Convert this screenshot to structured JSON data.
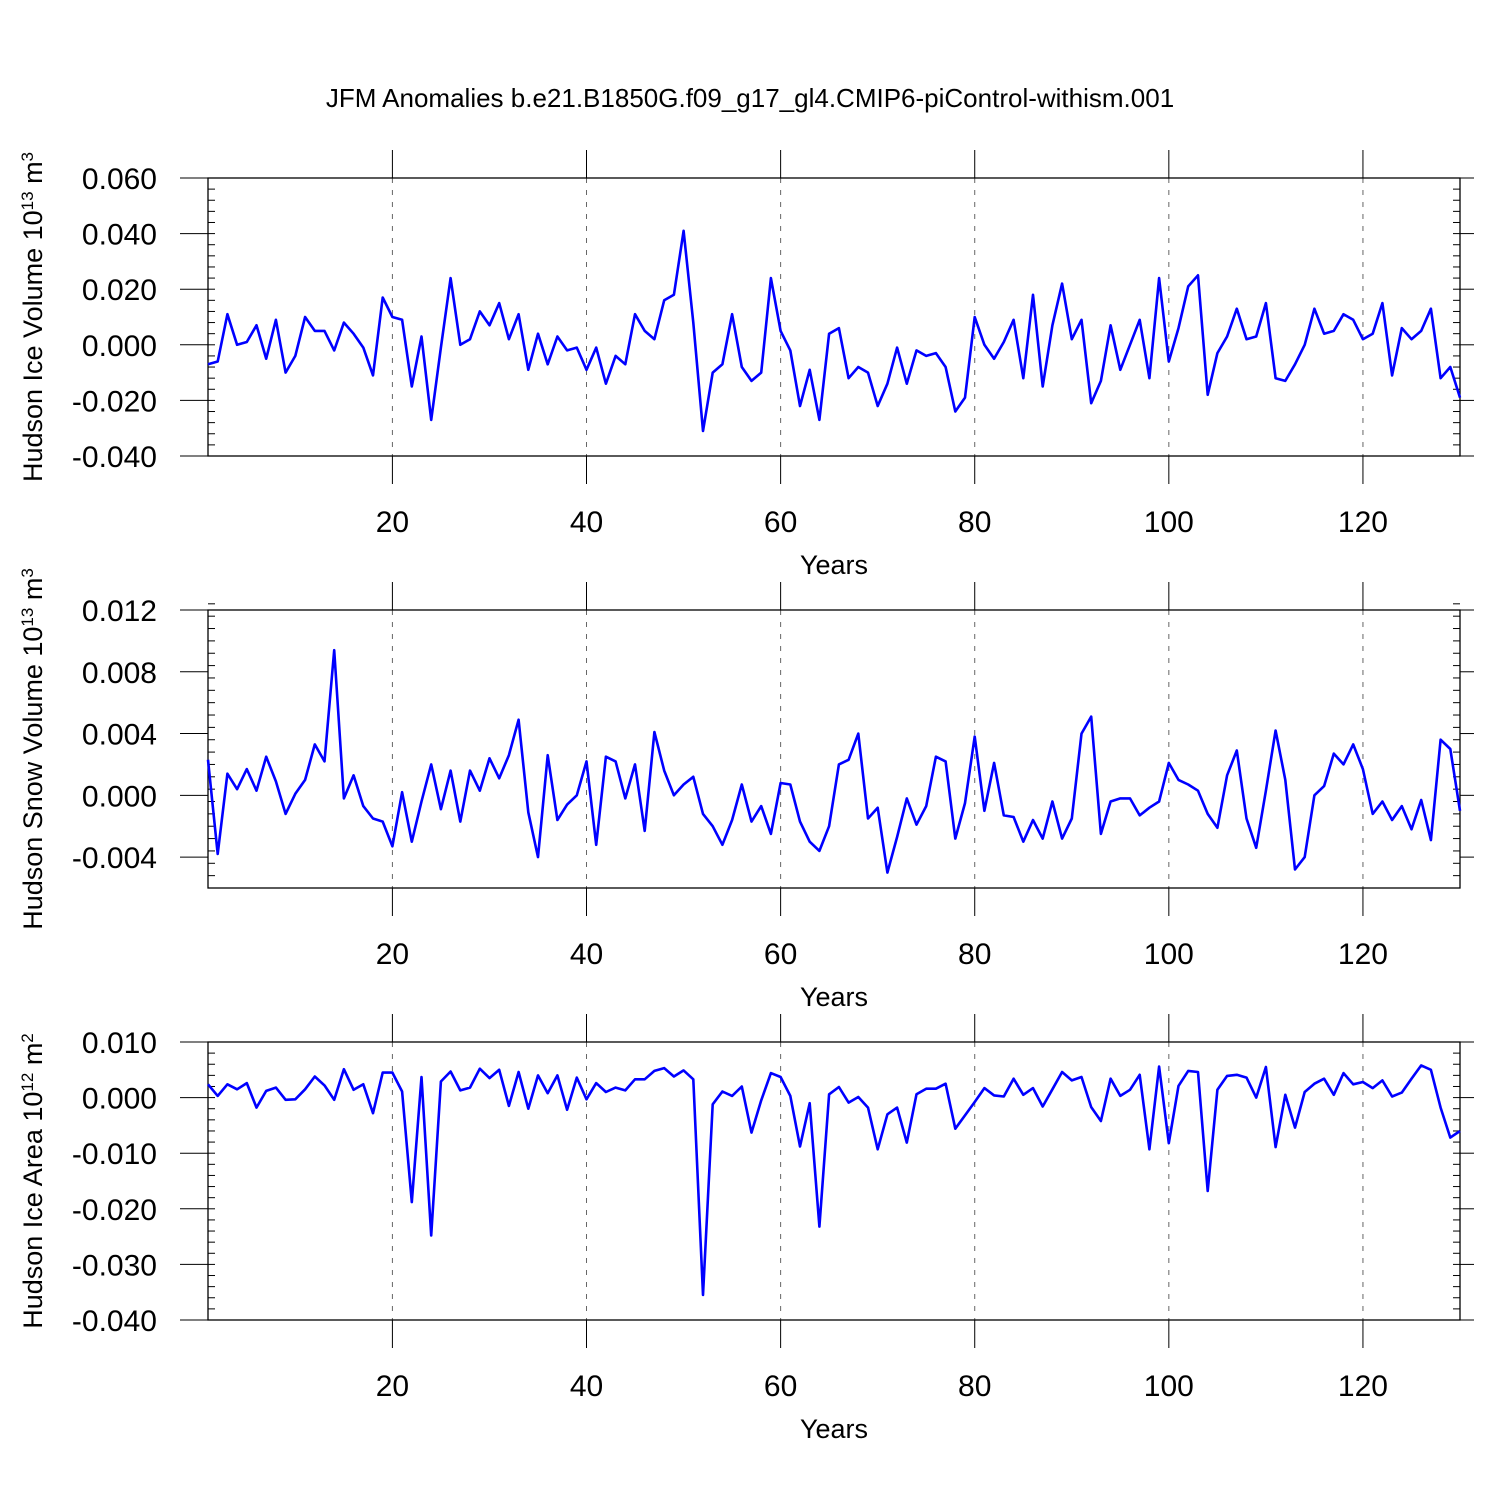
{
  "title": "JFM Anomalies b.e21.B1850G.f09_g17_gl4.CMIP6-piControl-withism.001",
  "chart_data": [
    {
      "type": "line",
      "title": "JFM Anomalies b.e21.B1850G.f09_g17_gl4.CMIP6-piControl-withism.001",
      "xlabel": "Years",
      "ylabel": {
        "main": "Hudson Ice Volume 10",
        "exp": "13",
        "unit": " m",
        "unit_exp": "3"
      },
      "xlim": [
        1,
        130
      ],
      "ylim": [
        -0.04,
        0.06
      ],
      "xticks": [
        20,
        40,
        60,
        80,
        100,
        120
      ],
      "xtick_labels": [
        "20",
        "40",
        "60",
        "80",
        "100",
        "120"
      ],
      "yticks": [
        -0.04,
        -0.02,
        0.0,
        0.02,
        0.04,
        0.06
      ],
      "ytick_labels": [
        "-0.040",
        "-0.020",
        "0.000",
        "0.020",
        "0.040",
        "0.060"
      ],
      "minor_y_step": 0.004,
      "vertical_gridlines": "dashed, at x ticks",
      "line_color": "#0000ff",
      "x": [
        1,
        2,
        3,
        4,
        5,
        6,
        7,
        8,
        9,
        10,
        11,
        12,
        13,
        14,
        15,
        16,
        17,
        18,
        19,
        20,
        21,
        22,
        23,
        24,
        25,
        26,
        27,
        28,
        29,
        30,
        31,
        32,
        33,
        34,
        35,
        36,
        37,
        38,
        39,
        40,
        41,
        42,
        43,
        44,
        45,
        46,
        47,
        48,
        49,
        50,
        51,
        52,
        53,
        54,
        55,
        56,
        57,
        58,
        59,
        60,
        61,
        62,
        63,
        64,
        65,
        66,
        67,
        68,
        69,
        70,
        71,
        72,
        73,
        74,
        75,
        76,
        77,
        78,
        79,
        80,
        81,
        82,
        83,
        84,
        85,
        86,
        87,
        88,
        89,
        90,
        91,
        92,
        93,
        94,
        95,
        96,
        97,
        98,
        99,
        100,
        101,
        102,
        103,
        104,
        105,
        106,
        107,
        108,
        109,
        110,
        111,
        112,
        113,
        114,
        115,
        116,
        117,
        118,
        119,
        120,
        121,
        122,
        123,
        124,
        125,
        126,
        127,
        128,
        129,
        130
      ],
      "values": [
        -0.007,
        -0.006,
        0.011,
        0.0,
        0.001,
        0.007,
        -0.005,
        0.009,
        -0.01,
        -0.004,
        0.01,
        0.005,
        0.005,
        -0.002,
        0.008,
        0.004,
        -0.001,
        -0.011,
        0.017,
        0.01,
        0.009,
        -0.015,
        0.003,
        -0.027,
        -0.001,
        0.024,
        0.0,
        0.002,
        0.012,
        0.007,
        0.015,
        0.002,
        0.011,
        -0.009,
        0.004,
        -0.007,
        0.003,
        -0.002,
        -0.001,
        -0.009,
        -0.001,
        -0.014,
        -0.004,
        -0.007,
        0.011,
        0.005,
        0.002,
        0.016,
        0.018,
        0.041,
        0.008,
        -0.031,
        -0.01,
        -0.007,
        0.011,
        -0.008,
        -0.013,
        -0.01,
        0.024,
        0.005,
        -0.002,
        -0.022,
        -0.009,
        -0.027,
        0.004,
        0.006,
        -0.012,
        -0.008,
        -0.01,
        -0.022,
        -0.014,
        -0.001,
        -0.014,
        -0.002,
        -0.004,
        -0.003,
        -0.008,
        -0.024,
        -0.019,
        0.01,
        0.0,
        -0.005,
        0.001,
        0.009,
        -0.012,
        0.018,
        -0.015,
        0.007,
        0.022,
        0.002,
        0.009,
        -0.021,
        -0.013,
        0.007,
        -0.009,
        0.0,
        0.009,
        -0.012,
        0.024,
        -0.006,
        0.006,
        0.021,
        0.025,
        -0.018,
        -0.003,
        0.003,
        0.013,
        0.002,
        0.003,
        0.015,
        -0.012,
        -0.013,
        -0.007,
        0.0,
        0.013,
        0.004,
        0.005,
        0.011,
        0.009,
        0.002,
        0.004,
        0.015,
        -0.011,
        0.006,
        0.002,
        0.005,
        0.013,
        -0.012,
        -0.008,
        -0.019
      ]
    },
    {
      "type": "line",
      "xlabel": "Years",
      "ylabel": {
        "main": "Hudson Snow Volume 10",
        "exp": "13",
        "unit": " m",
        "unit_exp": "3"
      },
      "xlim": [
        1,
        130
      ],
      "ylim": [
        -0.006,
        0.012
      ],
      "xticks": [
        20,
        40,
        60,
        80,
        100,
        120
      ],
      "xtick_labels": [
        "20",
        "40",
        "60",
        "80",
        "100",
        "120"
      ],
      "yticks": [
        -0.004,
        0.0,
        0.004,
        0.008,
        0.012
      ],
      "ytick_labels": [
        "-0.004",
        "0.000",
        "0.004",
        "0.008",
        "0.012"
      ],
      "minor_y_step": 0.0008,
      "vertical_gridlines": "dashed, at x ticks",
      "line_color": "#0000ff",
      "x": [
        1,
        2,
        3,
        4,
        5,
        6,
        7,
        8,
        9,
        10,
        11,
        12,
        13,
        14,
        15,
        16,
        17,
        18,
        19,
        20,
        21,
        22,
        23,
        24,
        25,
        26,
        27,
        28,
        29,
        30,
        31,
        32,
        33,
        34,
        35,
        36,
        37,
        38,
        39,
        40,
        41,
        42,
        43,
        44,
        45,
        46,
        47,
        48,
        49,
        50,
        51,
        52,
        53,
        54,
        55,
        56,
        57,
        58,
        59,
        60,
        61,
        62,
        63,
        64,
        65,
        66,
        67,
        68,
        69,
        70,
        71,
        72,
        73,
        74,
        75,
        76,
        77,
        78,
        79,
        80,
        81,
        82,
        83,
        84,
        85,
        86,
        87,
        88,
        89,
        90,
        91,
        92,
        93,
        94,
        95,
        96,
        97,
        98,
        99,
        100,
        101,
        102,
        103,
        104,
        105,
        106,
        107,
        108,
        109,
        110,
        111,
        112,
        113,
        114,
        115,
        116,
        117,
        118,
        119,
        120,
        121,
        122,
        123,
        124,
        125,
        126,
        127,
        128,
        129,
        130
      ],
      "values": [
        0.0023,
        -0.0038,
        0.0014,
        0.0004,
        0.0017,
        0.0003,
        0.0025,
        0.0009,
        -0.0012,
        0.0001,
        0.001,
        0.0033,
        0.0022,
        0.0094,
        -0.0002,
        0.0013,
        -0.0007,
        -0.0015,
        -0.0017,
        -0.0033,
        0.0002,
        -0.003,
        -0.0004,
        0.002,
        -0.0009,
        0.0016,
        -0.0017,
        0.0016,
        0.0003,
        0.0024,
        0.0011,
        0.0026,
        0.0049,
        -0.0011,
        -0.004,
        0.0026,
        -0.0016,
        -0.0006,
        0.0,
        0.0022,
        -0.0032,
        0.0025,
        0.0022,
        -0.0002,
        0.002,
        -0.0023,
        0.0041,
        0.0016,
        0.0,
        0.0007,
        0.0012,
        -0.0012,
        -0.002,
        -0.0032,
        -0.0016,
        0.0007,
        -0.0017,
        -0.0007,
        -0.0025,
        0.0008,
        0.0007,
        -0.0017,
        -0.003,
        -0.0036,
        -0.002,
        0.002,
        0.0023,
        0.004,
        -0.0015,
        -0.0008,
        -0.005,
        -0.0027,
        -0.0002,
        -0.0019,
        -0.0007,
        0.0025,
        0.0022,
        -0.0028,
        -0.0005,
        0.0038,
        -0.001,
        0.0021,
        -0.0013,
        -0.0014,
        -0.003,
        -0.0016,
        -0.0028,
        -0.0004,
        -0.0028,
        -0.0015,
        0.004,
        0.0051,
        -0.0025,
        -0.0004,
        -0.0002,
        -0.0002,
        -0.0013,
        -0.0008,
        -0.0004,
        0.0021,
        0.001,
        0.0007,
        0.0003,
        -0.0012,
        -0.0021,
        0.0013,
        0.0029,
        -0.0015,
        -0.0034,
        0.0003,
        0.0042,
        0.001,
        -0.0048,
        -0.004,
        0.0,
        0.0006,
        0.0027,
        0.002,
        0.0033,
        0.0017,
        -0.0012,
        -0.0004,
        -0.0016,
        -0.0007,
        -0.0022,
        -0.0003,
        -0.0029,
        0.0036,
        0.003,
        -0.001
      ]
    },
    {
      "type": "line",
      "xlabel": "Years",
      "ylabel": {
        "main": "Hudson Ice Area 10",
        "exp": "12",
        "unit": " m",
        "unit_exp": "2"
      },
      "xlim": [
        1,
        130
      ],
      "ylim": [
        -0.04,
        0.01
      ],
      "xticks": [
        20,
        40,
        60,
        80,
        100,
        120
      ],
      "xtick_labels": [
        "20",
        "40",
        "60",
        "80",
        "100",
        "120"
      ],
      "yticks": [
        -0.04,
        -0.03,
        -0.02,
        -0.01,
        0.0,
        0.01
      ],
      "ytick_labels": [
        "-0.040",
        "-0.030",
        "-0.020",
        "-0.010",
        "0.000",
        "0.010"
      ],
      "minor_y_step": 0.002,
      "vertical_gridlines": "dashed, at x ticks",
      "line_color": "#0000ff",
      "x": [
        1,
        2,
        3,
        4,
        5,
        6,
        7,
        8,
        9,
        10,
        11,
        12,
        13,
        14,
        15,
        16,
        17,
        18,
        19,
        20,
        21,
        22,
        23,
        24,
        25,
        26,
        27,
        28,
        29,
        30,
        31,
        32,
        33,
        34,
        35,
        36,
        37,
        38,
        39,
        40,
        41,
        42,
        43,
        44,
        45,
        46,
        47,
        48,
        49,
        50,
        51,
        52,
        53,
        54,
        55,
        56,
        57,
        58,
        59,
        60,
        61,
        62,
        63,
        64,
        65,
        66,
        67,
        68,
        69,
        70,
        71,
        72,
        73,
        74,
        75,
        76,
        77,
        78,
        79,
        80,
        81,
        82,
        83,
        84,
        85,
        86,
        87,
        88,
        89,
        90,
        91,
        92,
        93,
        94,
        95,
        96,
        97,
        98,
        99,
        100,
        101,
        102,
        103,
        104,
        105,
        106,
        107,
        108,
        109,
        110,
        111,
        112,
        113,
        114,
        115,
        116,
        117,
        118,
        119,
        120,
        121,
        122,
        123,
        124,
        125,
        126,
        127,
        128,
        129,
        130
      ],
      "values": [
        0.0024,
        0.0003,
        0.0024,
        0.0015,
        0.0026,
        -0.0018,
        0.0012,
        0.0018,
        -0.0004,
        -0.0003,
        0.0015,
        0.0038,
        0.0022,
        -0.0004,
        0.0051,
        0.0014,
        0.0024,
        -0.0028,
        0.0045,
        0.0045,
        0.0011,
        -0.0188,
        0.0037,
        -0.0248,
        0.0029,
        0.0047,
        0.0013,
        0.0018,
        0.0052,
        0.0035,
        0.005,
        -0.0015,
        0.0046,
        -0.002,
        0.004,
        0.0008,
        0.004,
        -0.0022,
        0.0036,
        -0.0003,
        0.0026,
        0.001,
        0.0018,
        0.0013,
        0.0033,
        0.0033,
        0.0048,
        0.0053,
        0.0038,
        0.0049,
        0.0033,
        -0.0355,
        -0.0012,
        0.0011,
        0.0003,
        0.002,
        -0.0063,
        -0.0005,
        0.0044,
        0.0037,
        0.0003,
        -0.0088,
        -0.001,
        -0.0232,
        0.0006,
        0.0019,
        -0.0009,
        0.0001,
        -0.0018,
        -0.0093,
        -0.003,
        -0.0018,
        -0.0081,
        0.0006,
        0.0016,
        0.0016,
        0.0025,
        -0.0056,
        -0.0032,
        -0.0008,
        0.0017,
        0.0004,
        0.0002,
        0.0034,
        0.0005,
        0.0017,
        -0.0016,
        0.0015,
        0.0046,
        0.0031,
        0.0037,
        -0.0017,
        -0.0042,
        0.0034,
        0.0003,
        0.0014,
        0.0041,
        -0.0093,
        0.0056,
        -0.0082,
        0.0021,
        0.0048,
        0.0046,
        -0.0168,
        0.0014,
        0.0039,
        0.0041,
        0.0036,
        0.0,
        0.0055,
        -0.0089,
        0.0005,
        -0.0054,
        0.001,
        0.0025,
        0.0034,
        0.0005,
        0.0044,
        0.0024,
        0.0028,
        0.0017,
        0.0031,
        0.0002,
        0.0009,
        0.0034,
        0.0058,
        0.005,
        -0.0018,
        -0.0072,
        -0.006
      ]
    }
  ]
}
